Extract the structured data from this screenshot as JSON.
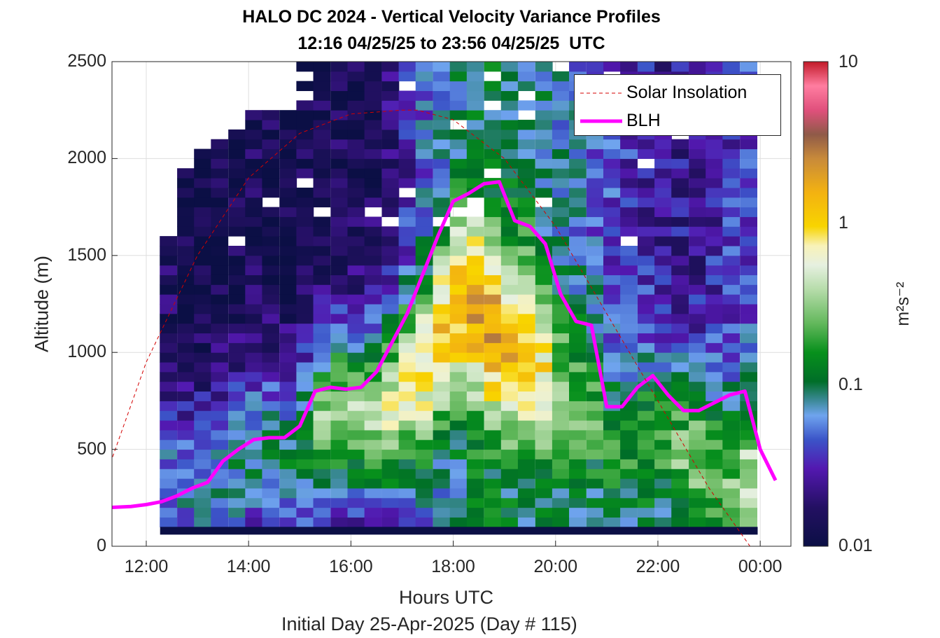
{
  "title": {
    "line1": "HALO DC 2024 - Vertical Velocity Variance Profiles",
    "line2": "12:16 04/25/25 to 23:56 04/25/25  UTC"
  },
  "colorbar": {
    "ticks": [
      "10",
      "1",
      "0.1",
      "0.01"
    ],
    "unit_label": "m²s⁻²",
    "scale": "log",
    "range": [
      0.01,
      10
    ]
  },
  "legend": {
    "solar_label": "Solar Insolation",
    "blh_label": "BLH"
  },
  "colors": {
    "blh": "#ff00ff",
    "solar": "#d40000",
    "floor_band": "#0b0f45"
  },
  "chart_data": {
    "type": "heatmap",
    "title": "HALO DC 2024 - Vertical Velocity Variance Profiles",
    "subtitle": "12:16 04/25/25 to 23:56 04/25/25  UTC",
    "xlabel": "Hours UTC",
    "ylabel": "Altitude (m)",
    "footer": "Initial Day 25-Apr-2025 (Day # 115)",
    "xlim": [
      11.33,
      24.6
    ],
    "ylim": [
      0,
      2500
    ],
    "x_ticks": [
      "12:00",
      "14:00",
      "16:00",
      "18:00",
      "20:00",
      "22:00",
      "00:00"
    ],
    "x_tick_values": [
      12,
      14,
      16,
      18,
      20,
      22,
      24
    ],
    "y_ticks": [
      "0",
      "500",
      "1000",
      "1500",
      "2000",
      "2500"
    ],
    "y_tick_values": [
      0,
      500,
      1000,
      1500,
      2000,
      2500
    ],
    "grid": true,
    "legend_position": "top-right",
    "heatmap": {
      "time_start": 12.27,
      "time_step": 0.333,
      "alt_start": 100,
      "alt_step": 50,
      "colorscale": "log",
      "value_range": [
        0.01,
        10
      ],
      "columns": [
        {
          "t": 12.43,
          "top": 1600,
          "peak": 0.06,
          "peak_alt": 300,
          "upper": 0.015
        },
        {
          "t": 12.77,
          "top": 1950,
          "peak": 0.06,
          "peak_alt": 300,
          "upper": 0.012
        },
        {
          "t": 13.1,
          "top": 2050,
          "peak": 0.07,
          "peak_alt": 300,
          "upper": 0.012
        },
        {
          "t": 13.43,
          "top": 2100,
          "peak": 0.08,
          "peak_alt": 350,
          "upper": 0.013
        },
        {
          "t": 13.77,
          "top": 2150,
          "peak": 0.08,
          "peak_alt": 400,
          "upper": 0.013
        },
        {
          "t": 14.1,
          "top": 2250,
          "peak": 0.09,
          "peak_alt": 450,
          "upper": 0.014
        },
        {
          "t": 14.43,
          "top": 2300,
          "peak": 0.09,
          "peak_alt": 450,
          "upper": 0.013
        },
        {
          "t": 14.77,
          "top": 2250,
          "peak": 0.1,
          "peak_alt": 450,
          "upper": 0.013
        },
        {
          "t": 15.1,
          "top": 2500,
          "peak": 0.15,
          "peak_alt": 500,
          "upper": 0.013
        },
        {
          "t": 15.43,
          "top": 2500,
          "peak": 0.3,
          "peak_alt": 600,
          "upper": 0.013
        },
        {
          "t": 15.77,
          "top": 2500,
          "peak": 0.35,
          "peak_alt": 650,
          "upper": 0.014
        },
        {
          "t": 16.1,
          "top": 2500,
          "peak": 0.35,
          "peak_alt": 650,
          "upper": 0.014
        },
        {
          "t": 16.43,
          "top": 2500,
          "peak": 0.35,
          "peak_alt": 650,
          "upper": 0.016
        },
        {
          "t": 16.77,
          "top": 2500,
          "peak": 0.5,
          "peak_alt": 700,
          "upper": 0.02
        },
        {
          "t": 17.1,
          "top": 2500,
          "peak": 0.6,
          "peak_alt": 800,
          "upper": 0.03
        },
        {
          "t": 17.43,
          "top": 2500,
          "peak": 0.8,
          "peak_alt": 900,
          "upper": 0.05
        },
        {
          "t": 17.77,
          "top": 2500,
          "peak": 1.2,
          "peak_alt": 1100,
          "upper": 0.06
        },
        {
          "t": 18.1,
          "top": 2500,
          "peak": 1.5,
          "peak_alt": 1200,
          "upper": 0.08
        },
        {
          "t": 18.43,
          "top": 2500,
          "peak": 2.0,
          "peak_alt": 1200,
          "upper": 0.1
        },
        {
          "t": 18.77,
          "top": 2500,
          "peak": 2.2,
          "peak_alt": 1100,
          "upper": 0.1
        },
        {
          "t": 19.1,
          "top": 2500,
          "peak": 1.5,
          "peak_alt": 1000,
          "upper": 0.09
        },
        {
          "t": 19.43,
          "top": 2500,
          "peak": 1.2,
          "peak_alt": 1000,
          "upper": 0.09
        },
        {
          "t": 19.77,
          "top": 2500,
          "peak": 0.8,
          "peak_alt": 900,
          "upper": 0.08
        },
        {
          "t": 20.1,
          "top": 2500,
          "peak": 0.3,
          "peak_alt": 800,
          "upper": 0.07
        },
        {
          "t": 20.43,
          "top": 2500,
          "peak": 0.25,
          "peak_alt": 700,
          "upper": 0.06
        },
        {
          "t": 20.77,
          "top": 2500,
          "peak": 0.2,
          "peak_alt": 650,
          "upper": 0.05
        },
        {
          "t": 21.1,
          "top": 2500,
          "peak": 0.15,
          "peak_alt": 500,
          "upper": 0.04
        },
        {
          "t": 21.43,
          "top": 2500,
          "peak": 0.15,
          "peak_alt": 450,
          "upper": 0.035
        },
        {
          "t": 21.77,
          "top": 2500,
          "peak": 0.2,
          "peak_alt": 500,
          "upper": 0.03
        },
        {
          "t": 22.1,
          "top": 2500,
          "peak": 0.2,
          "peak_alt": 500,
          "upper": 0.025
        },
        {
          "t": 22.43,
          "top": 2500,
          "peak": 0.25,
          "peak_alt": 450,
          "upper": 0.025
        },
        {
          "t": 22.77,
          "top": 2500,
          "peak": 0.3,
          "peak_alt": 400,
          "upper": 0.025
        },
        {
          "t": 23.1,
          "top": 2500,
          "peak": 0.2,
          "peak_alt": 350,
          "upper": 0.03
        },
        {
          "t": 23.43,
          "top": 2500,
          "peak": 0.25,
          "peak_alt": 300,
          "upper": 0.035
        },
        {
          "t": 23.77,
          "top": 2500,
          "peak": 0.5,
          "peak_alt": 250,
          "upper": 0.04
        }
      ]
    },
    "series": [
      {
        "name": "BLH",
        "x": [
          11.3,
          11.7,
          12.0,
          12.3,
          12.6,
          12.9,
          13.2,
          13.5,
          13.8,
          14.1,
          14.4,
          14.7,
          15.0,
          15.3,
          15.6,
          15.9,
          16.2,
          16.5,
          16.8,
          17.1,
          17.4,
          17.7,
          18.0,
          18.3,
          18.6,
          18.9,
          19.2,
          19.5,
          19.8,
          20.1,
          20.4,
          20.7,
          21.0,
          21.3,
          21.6,
          21.9,
          22.2,
          22.5,
          22.8,
          23.1,
          23.4,
          23.7,
          24.0,
          24.3
        ],
        "y": [
          200,
          205,
          215,
          230,
          260,
          300,
          330,
          440,
          500,
          550,
          560,
          560,
          620,
          800,
          820,
          810,
          820,
          900,
          1050,
          1200,
          1400,
          1600,
          1780,
          1820,
          1870,
          1880,
          1680,
          1650,
          1560,
          1300,
          1160,
          1140,
          720,
          720,
          820,
          880,
          780,
          700,
          700,
          740,
          780,
          800,
          500,
          340
        ]
      },
      {
        "name": "Solar Insolation",
        "type": "line",
        "style": "dashed",
        "x": [
          11.3,
          12.0,
          13.0,
          14.0,
          15.0,
          16.0,
          17.0,
          17.3,
          18.0,
          19.0,
          20.0,
          21.0,
          22.0,
          23.0,
          23.8,
          24.6
        ],
        "y": [
          430,
          950,
          1500,
          1900,
          2130,
          2230,
          2250,
          2250,
          2200,
          2000,
          1650,
          1200,
          750,
          300,
          0,
          0
        ]
      }
    ]
  },
  "axes_text": {
    "xlabel": "Hours UTC",
    "ylabel": "Altitude (m)",
    "footer": "Initial Day 25-Apr-2025 (Day # 115)"
  }
}
